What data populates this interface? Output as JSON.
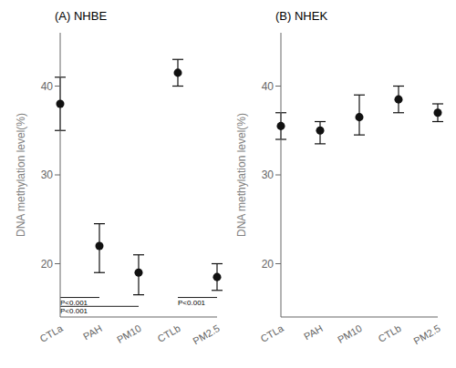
{
  "chart_data": [
    {
      "type": "scatter",
      "title": "(A) NHBE",
      "categories": [
        "CTLa",
        "PAH",
        "PM10",
        "CTLb",
        "PM2.5"
      ],
      "values": [
        38.0,
        22.0,
        19.0,
        41.5,
        18.5
      ],
      "yerr_low": [
        3.0,
        3.0,
        2.5,
        1.5,
        1.5
      ],
      "yerr_high": [
        3.0,
        2.5,
        2.0,
        1.5,
        1.5
      ],
      "color": "#111111",
      "marker": "circle",
      "ylim": [
        14.0,
        46.0
      ],
      "yticks": [
        20,
        30,
        40
      ],
      "ylabel": "DNA methylation level(%)",
      "annotations": [
        {
          "label": "P<0.001",
          "x": [
            "CTLa",
            "PAH"
          ],
          "y": 16.2
        },
        {
          "label": "P<0.001",
          "x": [
            "CTLa",
            "PM10"
          ],
          "y": 15.2
        },
        {
          "label": "P<0.001",
          "x": [
            "CTLb",
            "PM2.5"
          ],
          "y": 16.2
        }
      ]
    },
    {
      "type": "scatter",
      "title": "(B) NHEK",
      "categories": [
        "CTLa",
        "PAH",
        "PM10",
        "CTLb",
        "PM2.5"
      ],
      "values": [
        35.5,
        35.0,
        36.5,
        38.5,
        37.0
      ],
      "yerr_low": [
        1.5,
        1.5,
        2.0,
        1.5,
        1.0
      ],
      "yerr_high": [
        1.5,
        1.0,
        2.5,
        1.5,
        1.0
      ],
      "color": "#111111",
      "marker": "circle",
      "ylim": [
        14.0,
        46.0
      ],
      "yticks": [
        20,
        30,
        40
      ],
      "ylabel": "DNA methylation level(%)"
    }
  ]
}
